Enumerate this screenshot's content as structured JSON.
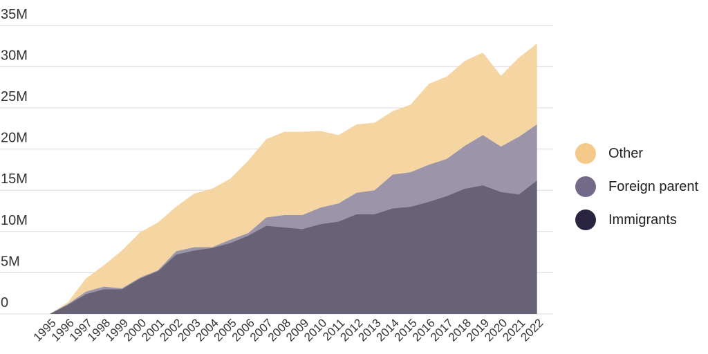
{
  "chart_data": {
    "type": "area",
    "stacked": true,
    "x": [
      "1995",
      "1996",
      "1997",
      "1998",
      "1999",
      "2000",
      "2001",
      "2002",
      "2003",
      "2004",
      "2005",
      "2006",
      "2007",
      "2008",
      "2009",
      "2010",
      "2011",
      "2012",
      "2013",
      "2014",
      "2015",
      "2016",
      "2017",
      "2018",
      "2019",
      "2020",
      "2021",
      "2022"
    ],
    "y_ticks": [
      "0",
      "5M",
      "10M",
      "15M",
      "20M",
      "25M",
      "30M",
      "35M"
    ],
    "ylim": [
      0,
      35
    ],
    "grid": true,
    "legend_position": "right",
    "series": [
      {
        "name": "Immigrants",
        "color": "#686276",
        "legend_color": "#2a2440",
        "values": [
          0,
          1.1,
          2.4,
          3.0,
          3.0,
          4.3,
          5.2,
          7.2,
          7.7,
          8.0,
          8.6,
          9.5,
          10.7,
          10.5,
          10.3,
          10.9,
          11.2,
          12.1,
          12.1,
          12.8,
          13.0,
          13.6,
          14.3,
          15.2,
          15.6,
          14.8,
          14.5,
          16.2
        ]
      },
      {
        "name": "Foreign parent",
        "color": "#9c94a8",
        "legend_color": "#726a88",
        "values": [
          0,
          0.1,
          0.3,
          0.3,
          0.1,
          0.1,
          0.1,
          0.4,
          0.4,
          0.1,
          0.4,
          0.3,
          1.0,
          1.5,
          1.7,
          2.0,
          2.2,
          2.6,
          2.9,
          4.1,
          4.2,
          4.5,
          4.5,
          5.2,
          6.1,
          5.5,
          7.0,
          6.8
        ]
      },
      {
        "name": "Other",
        "color": "#f5d6a3",
        "legend_color": "#f5c98a",
        "values": [
          0,
          0.2,
          1.6,
          2.6,
          4.6,
          5.5,
          5.8,
          5.4,
          6.5,
          7.1,
          7.4,
          8.8,
          9.5,
          10.1,
          10.1,
          9.3,
          8.3,
          8.3,
          8.2,
          7.7,
          8.2,
          9.8,
          10.0,
          10.3,
          10.0,
          8.6,
          9.6,
          9.8
        ]
      }
    ]
  }
}
